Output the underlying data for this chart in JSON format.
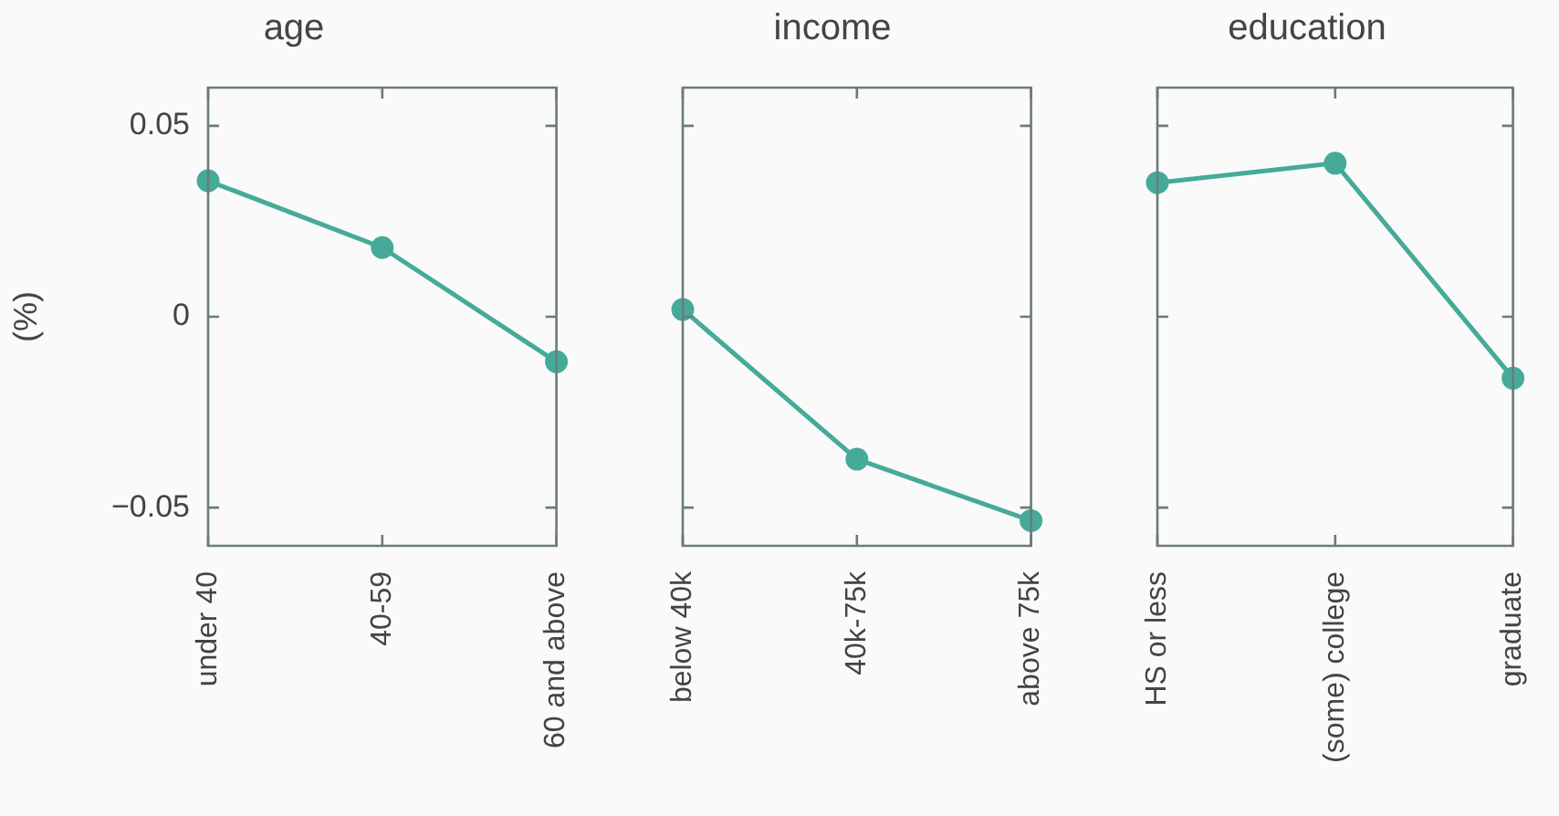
{
  "chart_data": [
    {
      "type": "line",
      "title": "age",
      "ylabel": "(%)",
      "categories": [
        "under 40",
        "40-59",
        "60 and above"
      ],
      "series": [
        {
          "color": "#45ab98",
          "values": [
            0.0356,
            0.0181,
            -0.0118
          ]
        }
      ],
      "ylim": [
        -0.06,
        0.06
      ],
      "yticks": [
        {
          "value": -0.05,
          "label": "−0.05"
        },
        0,
        0.05
      ],
      "marker": "circle"
    },
    {
      "type": "line",
      "title": "income",
      "categories": [
        "below 40k",
        "40k-75k",
        "above 75k"
      ],
      "series": [
        {
          "color": "#45ab98",
          "values": [
            0.0019,
            -0.0373,
            -0.0534
          ]
        }
      ],
      "ylim": [
        -0.06,
        0.06
      ],
      "yticks": [
        {
          "value": -0.05,
          "label": null
        },
        {
          "value": 0,
          "label": null
        },
        {
          "value": 0.05,
          "label": null
        }
      ],
      "marker": "circle",
      "tick_labels": "x"
    },
    {
      "type": "line",
      "title": "education",
      "categories": [
        "HS or less",
        "(some) college",
        "graduate"
      ],
      "series": [
        {
          "color": "#45ab98",
          "values": [
            0.0351,
            0.0402,
            -0.0161
          ]
        }
      ],
      "ylim": [
        -0.06,
        0.06
      ],
      "yticks": [
        {
          "value": -0.05,
          "label": null
        },
        {
          "value": 0,
          "label": null
        },
        {
          "value": 0.05,
          "label": null
        }
      ],
      "marker": "circle",
      "tick_labels": "x"
    }
  ]
}
